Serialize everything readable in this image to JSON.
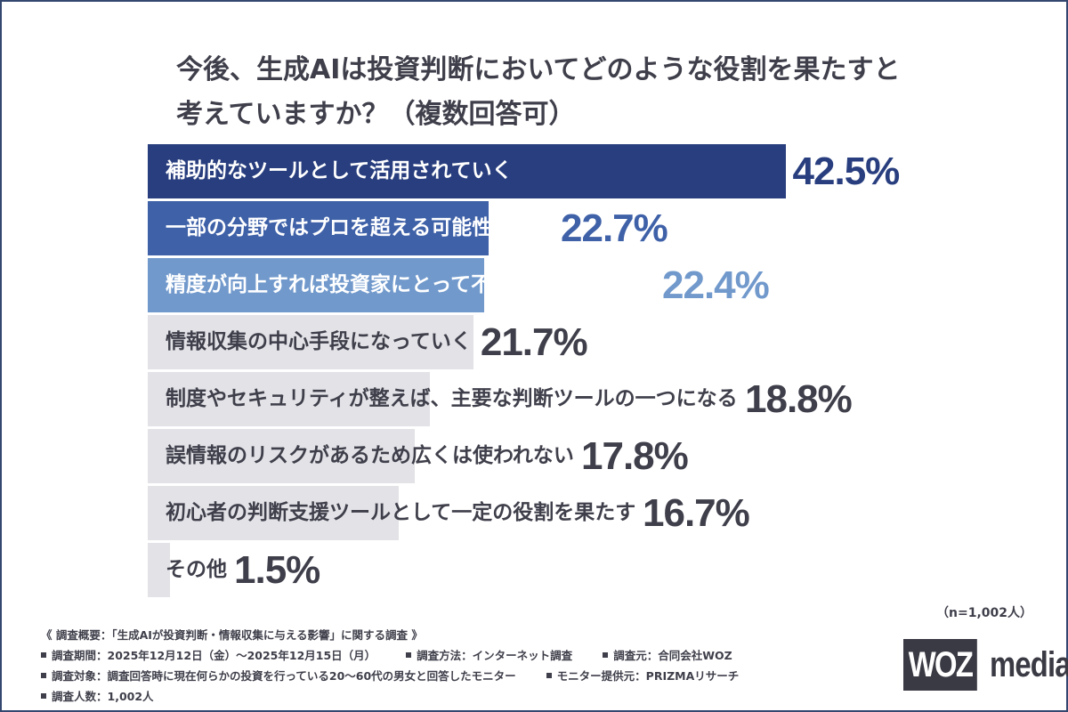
{
  "title_lines": [
    "今後、生成AIは投資判断においてどのような役割を果たすと",
    "考えていますか？（複数回答可）"
  ],
  "chart_data": {
    "type": "bar",
    "orientation": "horizontal",
    "categories": [
      "補助的なツールとして活用されていく",
      "一部の分野ではプロを超える可能性がある",
      "精度が向上すれば投資家にとって不可欠な存在になる",
      "情報収集の中心手段になっていく",
      "制度やセキュリティが整えば、主要な判断ツールの一つになる",
      "誤情報のリスクがあるため広くは使われない",
      "初心者の判断支援ツールとして一定の役割を果たす",
      "その他"
    ],
    "values": [
      42.5,
      22.7,
      22.4,
      21.7,
      18.8,
      17.8,
      16.7,
      1.5
    ],
    "value_labels": [
      "42.5%",
      "22.7%",
      "22.4%",
      "21.7%",
      "18.8%",
      "17.8%",
      "16.7%",
      "1.5%"
    ],
    "bar_colors": [
      "#283e7e",
      "#3f61a8",
      "#7199cc",
      "#e2e2e7",
      "#e2e2e7",
      "#e2e2e7",
      "#e2e2e7",
      "#e2e2e7"
    ],
    "value_colors": [
      "#283e7e",
      "#3f61a8",
      "#7199cc",
      "#3f3f4b",
      "#3f3f4b",
      "#3f3f4b",
      "#3f3f4b",
      "#3f3f4b"
    ],
    "label_colors": [
      "#ffffff",
      "#ffffff",
      "#ffffff",
      "#3f3f4b",
      "#3f3f4b",
      "#3f3f4b",
      "#3f3f4b",
      "#3f3f4b"
    ],
    "title": "今後、生成AIは投資判断においてどのような役割を果たすと考えていますか？（複数回答可）"
  },
  "sample_size": "（n=1,002人）",
  "footer": {
    "heading": "《 調査概要：「生成AIが投資判断・情報収集に与える影響」に関する調査 》",
    "rows": [
      [
        "調査期間：2025年12月12日（金）～2025年12月15日（月）",
        "調査方法：インターネット調査",
        "調査元：合同会社WOZ"
      ],
      [
        "調査対象：調査回答時に現在何らかの投資を行っている20～60代の男女と回答したモニター",
        "モニター提供元：PRIZMAリサーチ"
      ],
      [
        "調査人数：1,002人"
      ]
    ]
  },
  "logo": {
    "box_text": "WOZ",
    "text": "media"
  }
}
